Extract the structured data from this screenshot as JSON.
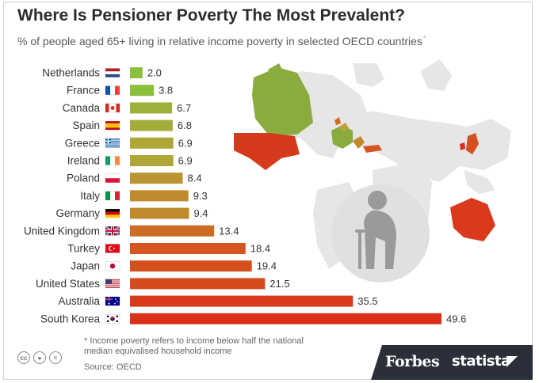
{
  "title": "Where Is Pensioner Poverty The Most Prevalent?",
  "subtitle": "% of people aged 65+ living in relative income poverty in selected OECD countries",
  "subtitle_marker": "*",
  "footnote_line1": "* Income poverty refers to income below half the national",
  "footnote_line2": "median equivalised household income",
  "source": "Source: OECD",
  "brands": {
    "forbes": "Forbes",
    "statista": "statista"
  },
  "icons": [
    "cc-icon",
    "attribution-icon",
    "no-derivatives-icon",
    "flag-icon",
    "world-map",
    "elderly-person-icon"
  ],
  "chart_data": {
    "type": "bar",
    "orientation": "horizontal",
    "categories": [
      "Netherlands",
      "France",
      "Canada",
      "Spain",
      "Greece",
      "Ireland",
      "Poland",
      "Italy",
      "Germany",
      "United Kingdom",
      "Turkey",
      "Japan",
      "United States",
      "Australia",
      "South Korea"
    ],
    "values": [
      2.0,
      3.8,
      6.7,
      6.8,
      6.9,
      6.9,
      8.4,
      9.3,
      9.4,
      13.4,
      18.4,
      19.4,
      21.5,
      35.5,
      49.6
    ],
    "value_labels": [
      "2.0",
      "3.8",
      "6.7",
      "6.8",
      "6.9",
      "6.9",
      "8.4",
      "9.3",
      "9.4",
      "13.4",
      "18.4",
      "19.4",
      "21.5",
      "35.5",
      "49.6"
    ],
    "colors": [
      "#8cbf3c",
      "#8cbf3c",
      "#9fb03a",
      "#a5ad3a",
      "#aea637",
      "#aea637",
      "#b99432",
      "#c08a2c",
      "#c08a2c",
      "#cd6c25",
      "#d5541f",
      "#d5501e",
      "#d74a1d",
      "#da3a1b",
      "#db2f19"
    ],
    "xlim": [
      0,
      50
    ]
  }
}
